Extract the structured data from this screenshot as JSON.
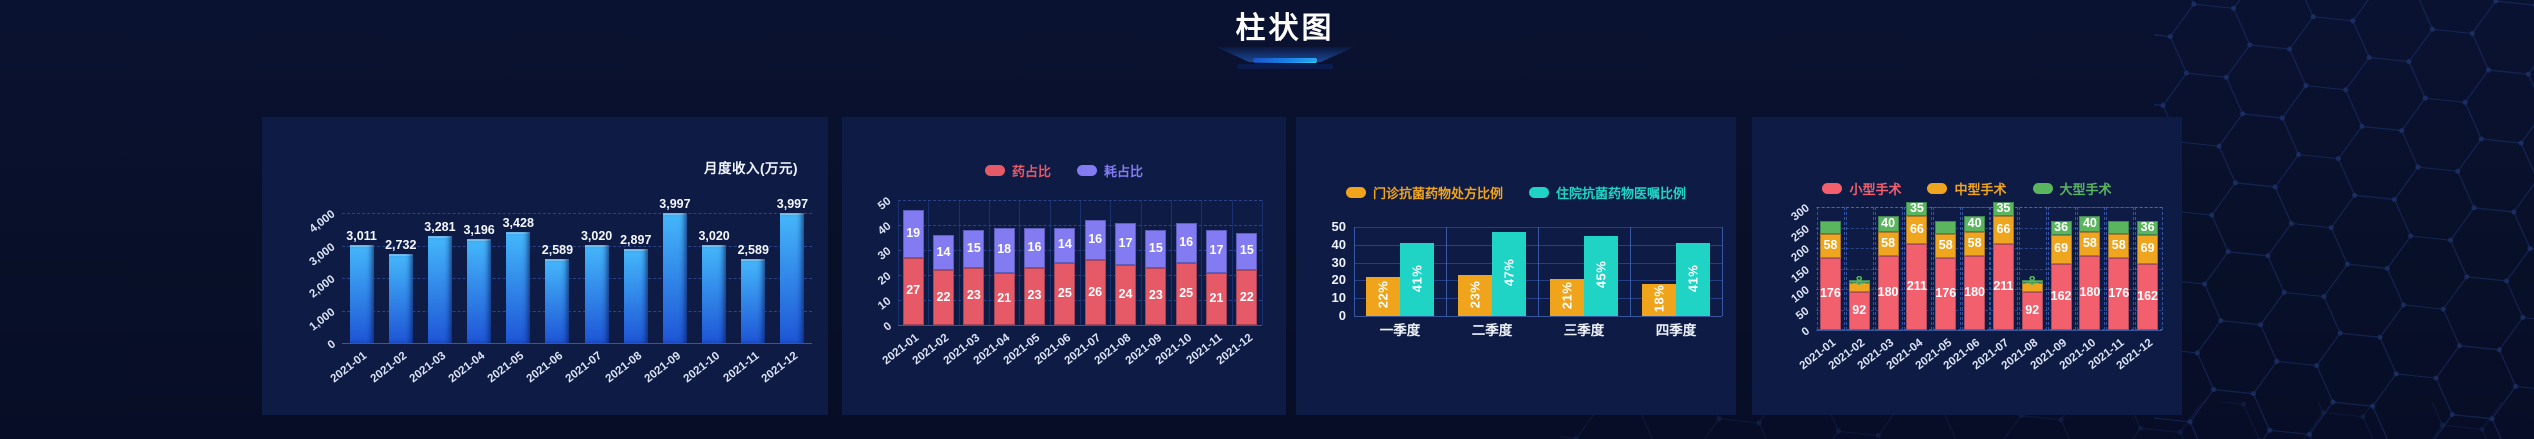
{
  "page": {
    "title": "柱状图"
  },
  "colors": {
    "background": "#081029",
    "panel": "#0e1b45",
    "title_underline": [
      "#0c3ea8",
      "#2fd8ff"
    ]
  },
  "chart_data": [
    {
      "type": "bar",
      "title": "月度收入(万元)",
      "categories": [
        "2021-01",
        "2021-02",
        "2021-03",
        "2021-04",
        "2021-05",
        "2021-06",
        "2021-07",
        "2021-08",
        "2021-09",
        "2021-10",
        "2021-11",
        "2021-12"
      ],
      "series": [
        {
          "name": "月度收入",
          "color": "#2f8df0",
          "values": [
            3011,
            2732,
            3281,
            3196,
            3428,
            2589,
            3020,
            2897,
            3997,
            3020,
            2589,
            3997
          ]
        }
      ],
      "value_labels": [
        "3,011",
        "2,732",
        "3,281",
        "3,196",
        "3,428",
        "2,589",
        "3,020",
        "2,897",
        "3,997",
        "3,020",
        "2,589",
        "3,997"
      ],
      "bar_gradient": [
        "#45b8fb",
        "#1e55d6"
      ],
      "ylim": [
        0,
        4000
      ],
      "yticks": [
        "0",
        "1,000",
        "2,000",
        "3,000",
        "4,000"
      ],
      "grid": "dashed-horizontal",
      "legend_position": "none"
    },
    {
      "type": "bar",
      "stacked": true,
      "categories": [
        "2021-01",
        "2021-02",
        "2021-03",
        "2021-04",
        "2021-05",
        "2021-06",
        "2021-07",
        "2021-08",
        "2021-09",
        "2021-10",
        "2021-11",
        "2021-12"
      ],
      "series": [
        {
          "name": "药占比",
          "color": "#e65a68",
          "values": [
            27,
            22,
            23,
            21,
            23,
            25,
            26,
            24,
            23,
            25,
            21,
            22
          ]
        },
        {
          "name": "耗占比",
          "color": "#837bf2",
          "values": [
            19,
            14,
            15,
            18,
            16,
            14,
            16,
            17,
            15,
            16,
            17,
            15
          ]
        }
      ],
      "ylim": [
        0,
        50
      ],
      "yticks": [
        "0",
        "10",
        "20",
        "30",
        "40",
        "50"
      ],
      "grid": "dashed-horizontal-and-vertical",
      "legend_position": "top"
    },
    {
      "type": "bar",
      "grouped": true,
      "categories": [
        "一季度",
        "二季度",
        "三季度",
        "四季度"
      ],
      "series": [
        {
          "name": "门诊抗菌药物处方比例",
          "color": "#f0a41c",
          "values": [
            22,
            23,
            21,
            18
          ],
          "labels": [
            "22%",
            "23%",
            "21%",
            "18%"
          ]
        },
        {
          "name": "住院抗菌药物医嘱比例",
          "color": "#1fd4c5",
          "values": [
            41,
            47,
            45,
            41
          ],
          "labels": [
            "41%",
            "47%",
            "45%",
            "41%"
          ]
        }
      ],
      "ylim": [
        0,
        50
      ],
      "yticks": [
        "0",
        "10",
        "20",
        "30",
        "40",
        "50"
      ],
      "grid": "solid-box",
      "legend_position": "top"
    },
    {
      "type": "bar",
      "stacked": true,
      "categories": [
        "2021-01",
        "2021-02",
        "2021-03",
        "2021-04",
        "2021-05",
        "2021-06",
        "2021-07",
        "2021-08",
        "2021-09",
        "2021-10",
        "2021-11",
        "2021-12"
      ],
      "series": [
        {
          "name": "小型手术",
          "color": "#f2606e",
          "values": [
            176,
            92,
            180,
            211,
            176,
            180,
            211,
            92,
            162,
            180,
            176,
            162
          ]
        },
        {
          "name": "中型手术",
          "color": "#f0a51f",
          "values": [
            58,
            22,
            58,
            66,
            58,
            58,
            66,
            22,
            69,
            58,
            58,
            69
          ]
        },
        {
          "name": "大型手术",
          "color": "#5ab55e",
          "values": [
            31,
            8,
            40,
            35,
            31,
            40,
            35,
            8,
            36,
            40,
            31,
            36
          ]
        }
      ],
      "ylim": [
        0,
        300
      ],
      "yticks": [
        "0",
        "50",
        "100",
        "150",
        "200",
        "250",
        "300"
      ],
      "grid": "dashed-boxes",
      "legend_position": "top"
    }
  ]
}
